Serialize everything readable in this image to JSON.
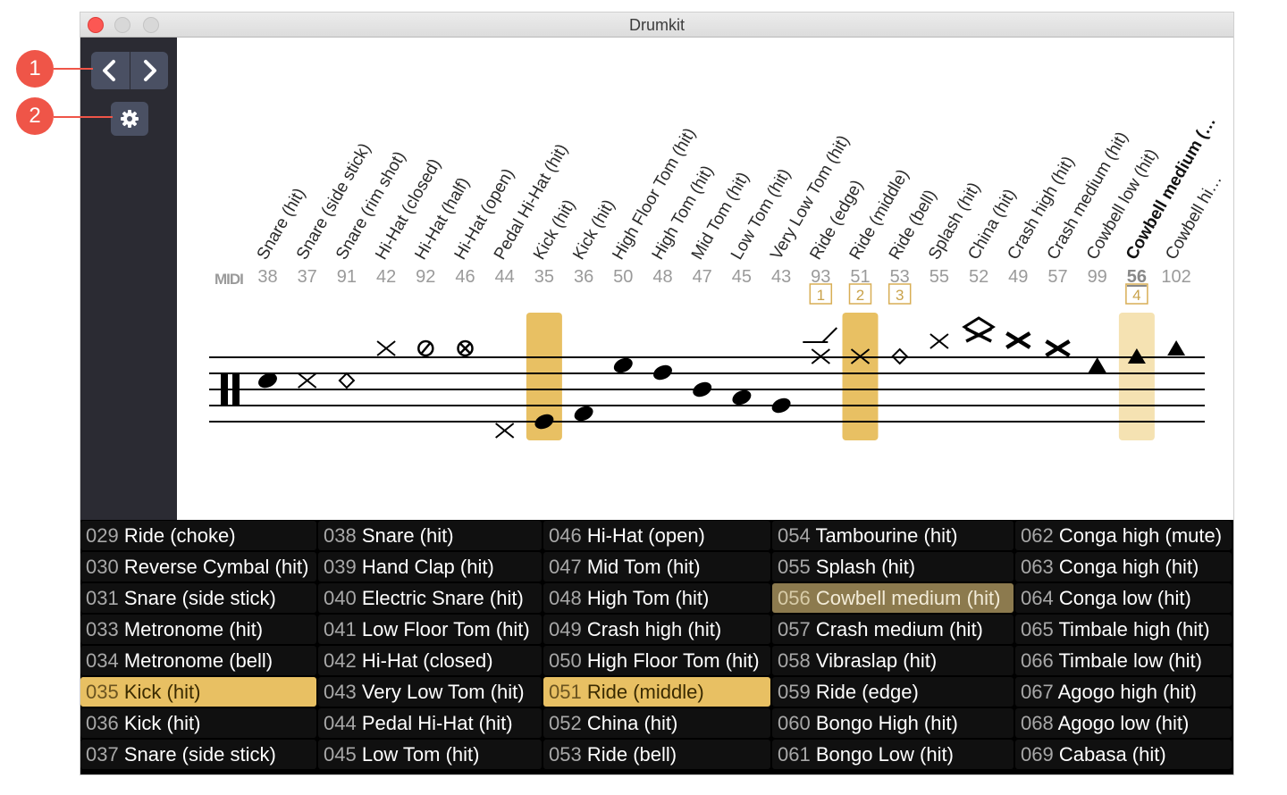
{
  "window": {
    "title": "Drumkit"
  },
  "callouts": [
    "1",
    "2"
  ],
  "midi_logo": "MIDI",
  "staff": {
    "columns": [
      {
        "label": "Snare (hit)",
        "midi": "38",
        "symbol": "note"
      },
      {
        "label": "Snare (side stick)",
        "midi": "37",
        "symbol": "x"
      },
      {
        "label": "Snare (rim shot)",
        "midi": "91",
        "symbol": "diamond"
      },
      {
        "label": "Hi-Hat (closed)",
        "midi": "42",
        "symbol": "x"
      },
      {
        "label": "Hi-Hat (half)",
        "midi": "92",
        "symbol": "slashed-circle"
      },
      {
        "label": "Hi-Hat (open)",
        "midi": "46",
        "symbol": "circle-x"
      },
      {
        "label": "Pedal Hi-Hat (hit)",
        "midi": "44",
        "symbol": "x"
      },
      {
        "label": "Kick (hit)",
        "midi": "35",
        "symbol": "note",
        "highlight": "strong"
      },
      {
        "label": "Kick (hit)",
        "midi": "36",
        "symbol": "note"
      },
      {
        "label": "High Floor Tom (hit)",
        "midi": "50",
        "symbol": "note"
      },
      {
        "label": "High Tom (hit)",
        "midi": "48",
        "symbol": "note"
      },
      {
        "label": "Mid Tom (hit)",
        "midi": "47",
        "symbol": "note"
      },
      {
        "label": "Low Tom (hit)",
        "midi": "45",
        "symbol": "note"
      },
      {
        "label": "Very Low Tom (hit)",
        "midi": "43",
        "symbol": "note"
      },
      {
        "label": "Ride (edge)",
        "midi": "93",
        "symbol": "x",
        "sel": "1"
      },
      {
        "label": "Ride (middle)",
        "midi": "51",
        "symbol": "x",
        "sel": "2",
        "highlight": "strong"
      },
      {
        "label": "Ride (bell)",
        "midi": "53",
        "symbol": "diamond",
        "sel": "3"
      },
      {
        "label": "Splash (hit)",
        "midi": "55",
        "symbol": "x"
      },
      {
        "label": "China (hit)",
        "midi": "52",
        "symbol": "china"
      },
      {
        "label": "Crash high (hit)",
        "midi": "49",
        "symbol": "bold-x"
      },
      {
        "label": "Crash medium (hit)",
        "midi": "57",
        "symbol": "bold-x"
      },
      {
        "label": "Cowbell low (hit)",
        "midi": "99",
        "symbol": "triangle"
      },
      {
        "label": "Cowbell medium (…",
        "midi": "56",
        "symbol": "triangle",
        "sel": "4",
        "highlight": "light",
        "bold": true
      },
      {
        "label": "Cowbell hi…",
        "midi": "102",
        "symbol": "triangle"
      }
    ]
  },
  "instrument_grid": [
    [
      {
        "num": "029",
        "name": "Ride (choke)"
      },
      {
        "num": "030",
        "name": "Reverse Cymbal (hit)"
      },
      {
        "num": "031",
        "name": "Snare (side stick)"
      },
      {
        "num": "033",
        "name": "Metronome (hit)"
      },
      {
        "num": "034",
        "name": "Metronome (bell)"
      },
      {
        "num": "035",
        "name": "Kick (hit)",
        "state": "active"
      },
      {
        "num": "036",
        "name": "Kick (hit)"
      },
      {
        "num": "037",
        "name": "Snare (side stick)"
      }
    ],
    [
      {
        "num": "038",
        "name": "Snare (hit)"
      },
      {
        "num": "039",
        "name": "Hand Clap (hit)"
      },
      {
        "num": "040",
        "name": "Electric Snare (hit)"
      },
      {
        "num": "041",
        "name": "Low Floor Tom (hit)"
      },
      {
        "num": "042",
        "name": "Hi-Hat (closed)"
      },
      {
        "num": "043",
        "name": "Very Low Tom (hit)"
      },
      {
        "num": "044",
        "name": "Pedal Hi-Hat (hit)"
      },
      {
        "num": "045",
        "name": "Low Tom (hit)"
      }
    ],
    [
      {
        "num": "046",
        "name": "Hi-Hat (open)"
      },
      {
        "num": "047",
        "name": "Mid Tom (hit)"
      },
      {
        "num": "048",
        "name": "High Tom (hit)"
      },
      {
        "num": "049",
        "name": "Crash high (hit)"
      },
      {
        "num": "050",
        "name": "High Floor Tom (hit)"
      },
      {
        "num": "051",
        "name": "Ride (middle)",
        "state": "active"
      },
      {
        "num": "052",
        "name": "China (hit)"
      },
      {
        "num": "053",
        "name": "Ride (bell)"
      }
    ],
    [
      {
        "num": "054",
        "name": "Tambourine (hit)"
      },
      {
        "num": "055",
        "name": "Splash (hit)"
      },
      {
        "num": "056",
        "name": "Cowbell medium (hit)",
        "state": "dim"
      },
      {
        "num": "057",
        "name": "Crash medium (hit)"
      },
      {
        "num": "058",
        "name": "Vibraslap (hit)"
      },
      {
        "num": "059",
        "name": "Ride (edge)"
      },
      {
        "num": "060",
        "name": "Bongo High (hit)"
      },
      {
        "num": "061",
        "name": "Bongo Low (hit)"
      }
    ],
    [
      {
        "num": "062",
        "name": "Conga high (mute)"
      },
      {
        "num": "063",
        "name": "Conga high (hit)"
      },
      {
        "num": "064",
        "name": "Conga low (hit)"
      },
      {
        "num": "065",
        "name": "Timbale high (hit)"
      },
      {
        "num": "066",
        "name": "Timbale low (hit)"
      },
      {
        "num": "067",
        "name": "Agogo high (hit)"
      },
      {
        "num": "068",
        "name": "Agogo low (hit)"
      },
      {
        "num": "069",
        "name": "Cabasa (hit)"
      }
    ]
  ]
}
